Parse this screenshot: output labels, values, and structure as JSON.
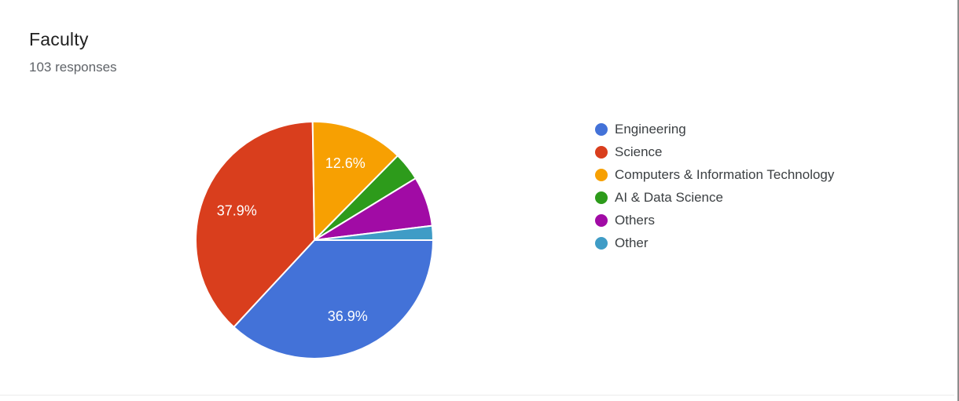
{
  "card": {
    "title": "Faculty",
    "subtitle": "103 responses"
  },
  "chart_data": {
    "type": "pie",
    "title": "Faculty",
    "subtitle": "103 responses",
    "total_responses": 103,
    "start_angle_deg": 90,
    "direction": "clockwise",
    "legend_position": "right",
    "slice_label_color": "#ffffff",
    "series": [
      {
        "name": "Engineering",
        "value": 38,
        "pct": 36.9,
        "pct_label": "36.9%",
        "color": "#4372d8"
      },
      {
        "name": "Science",
        "value": 39,
        "pct": 37.9,
        "pct_label": "37.9%",
        "color": "#d93e1d"
      },
      {
        "name": "Computers & Information Technology",
        "value": 13,
        "pct": 12.6,
        "pct_label": "12.6%",
        "color": "#f7a002"
      },
      {
        "name": "AI & Data Science",
        "value": 4,
        "pct": 3.9,
        "pct_label": "",
        "color": "#2d9b1b"
      },
      {
        "name": "Others",
        "value": 7,
        "pct": 6.8,
        "pct_label": "",
        "color": "#a10ba5"
      },
      {
        "name": "Other",
        "value": 2,
        "pct": 1.9,
        "pct_label": "",
        "color": "#3f9cc6"
      }
    ]
  }
}
